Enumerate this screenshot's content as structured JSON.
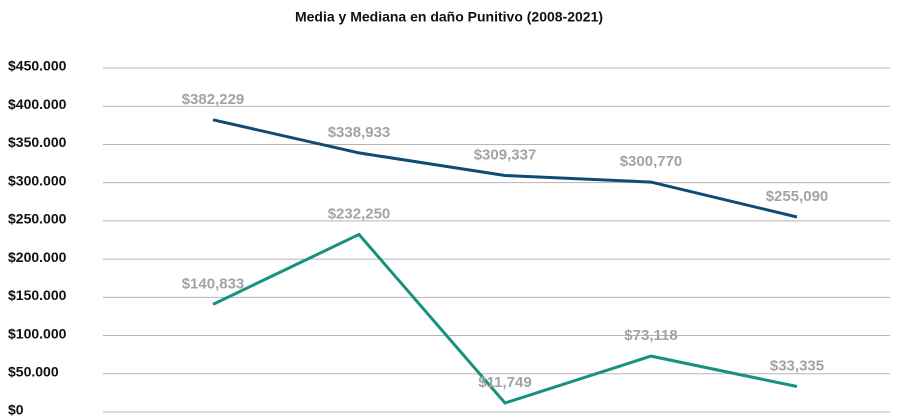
{
  "chart_data": {
    "type": "line",
    "title": "Media y Mediana en daño Punitivo (2008-2021)",
    "categories": [
      null,
      null,
      null,
      null,
      null
    ],
    "series": [
      {
        "color": "#0f4c75",
        "values": [
          382229,
          338933,
          309337,
          300770,
          255090
        ],
        "value_labels": [
          "$382,229",
          "$338,933",
          "$309,337",
          "$300,770",
          "$255,090"
        ]
      },
      {
        "color": "#17917f",
        "values": [
          140833,
          232250,
          11749,
          73118,
          33335
        ],
        "value_labels": [
          "$140,833",
          "$232,250",
          "$11,749",
          "$73,118",
          "$33,335"
        ]
      }
    ],
    "ylim": [
      0,
      450000
    ],
    "yticks": [
      {
        "value": 0,
        "label": "$0"
      },
      {
        "value": 50000,
        "label": "$50.000"
      },
      {
        "value": 100000,
        "label": "$100.000"
      },
      {
        "value": 150000,
        "label": "$150.000"
      },
      {
        "value": 200000,
        "label": "$200.000"
      },
      {
        "value": 250000,
        "label": "$250.000"
      },
      {
        "value": 300000,
        "label": "$300.000"
      },
      {
        "value": 350000,
        "label": "$350.000"
      },
      {
        "value": 400000,
        "label": "$400.000"
      },
      {
        "value": 450000,
        "label": "$450.000"
      }
    ],
    "grid": true
  }
}
